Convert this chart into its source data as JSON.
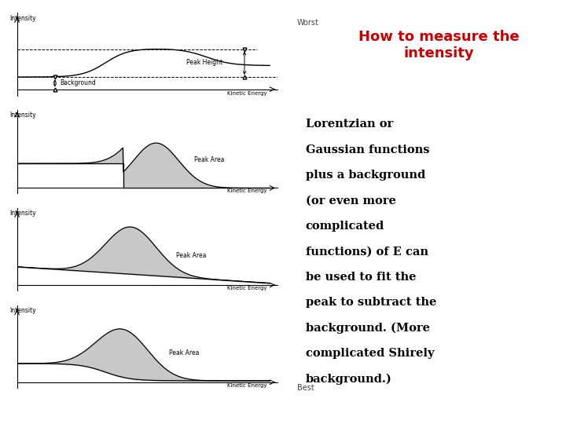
{
  "title": "How to measure the\nintensity",
  "title_color": "#cc0000",
  "title_fontsize": 13,
  "worst_label": "Worst",
  "best_label": "Best",
  "bg_color": "#ffffff",
  "fill_color": "#c8c8c8",
  "line_color": "#000000",
  "label_color": "#444444",
  "body_lines": [
    "Lorentzian or",
    "Gaussian functions",
    "plus a background",
    "(or even more",
    "complicated",
    "functions) of E can",
    "be used to fit the",
    "peak to subtract the",
    "background. (More",
    "complicated Shirely",
    "background.)"
  ],
  "body_bold": [
    false,
    false,
    true,
    false,
    false,
    false,
    false,
    false,
    false,
    false,
    false
  ]
}
